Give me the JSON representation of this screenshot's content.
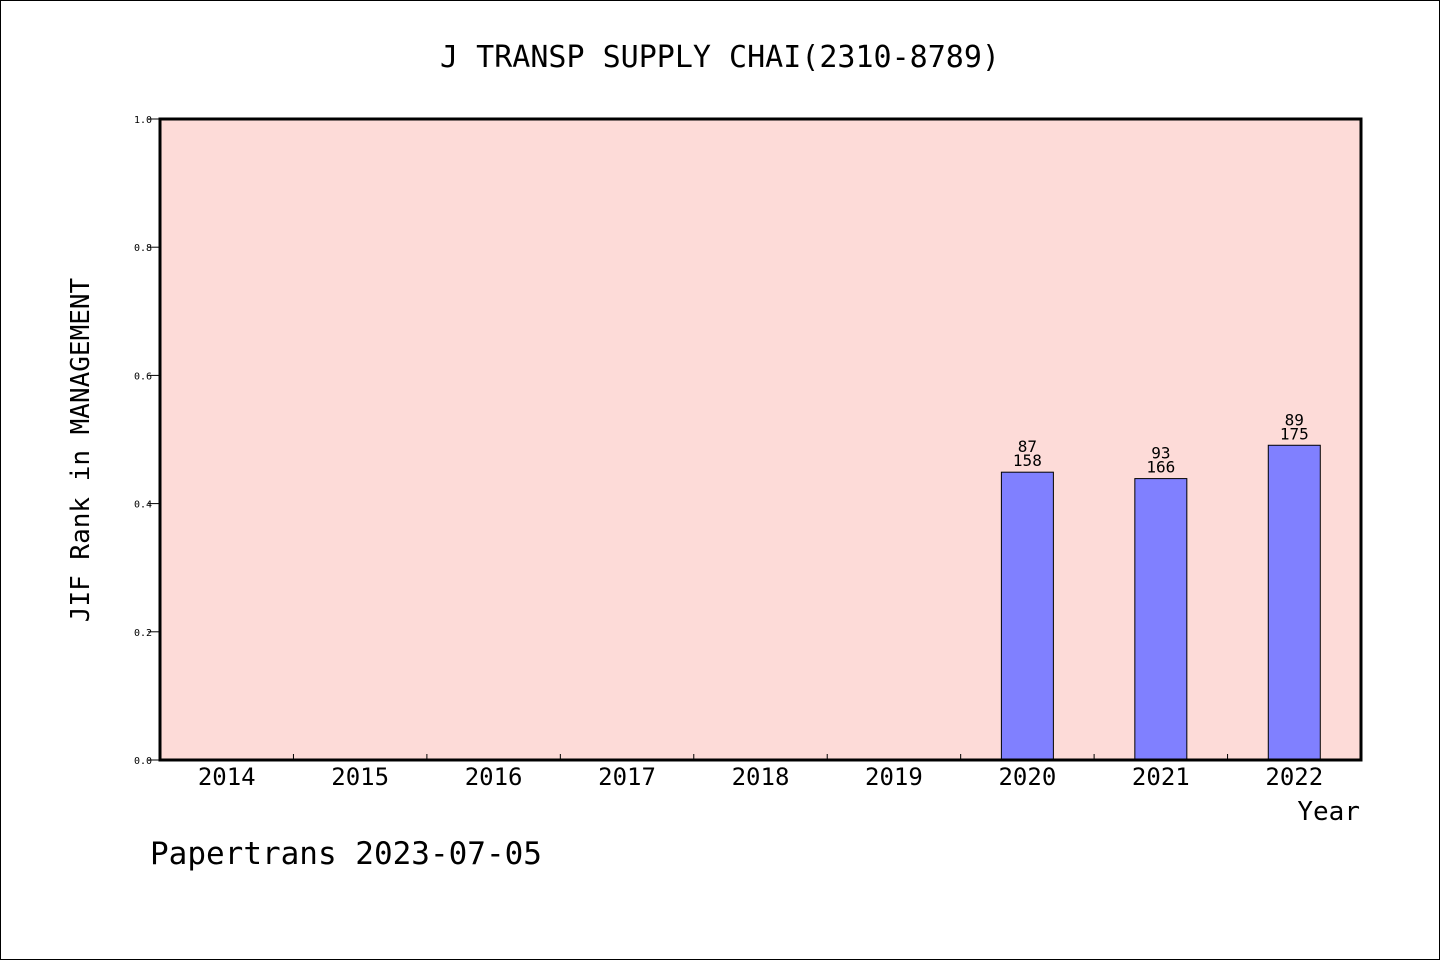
{
  "chart_data": {
    "type": "bar",
    "title": "J TRANSP SUPPLY CHAI(2310-8789)",
    "xlabel": "Year",
    "ylabel": "JIF Rank in MANAGEMENT",
    "categories": [
      "2014",
      "2015",
      "2016",
      "2017",
      "2018",
      "2019",
      "2020",
      "2021",
      "2022"
    ],
    "values": [
      null,
      null,
      null,
      null,
      null,
      null,
      0.449,
      0.439,
      0.491
    ],
    "bar_labels": [
      null,
      null,
      null,
      null,
      null,
      null,
      {
        "rank": "87",
        "total": "158"
      },
      {
        "rank": "93",
        "total": "166"
      },
      {
        "rank": "89",
        "total": "175"
      }
    ],
    "ylim": [
      0,
      1.0
    ],
    "yticks": [
      "0.0",
      "0.2",
      "0.4",
      "0.6",
      "0.8",
      "1.0"
    ],
    "grid": false,
    "colors": {
      "plot_background": "#fddbd8",
      "bar_fill": "#8080ff",
      "bar_stroke": "#000000"
    }
  },
  "footer": {
    "credit": "Papertrans 2023-07-05"
  }
}
